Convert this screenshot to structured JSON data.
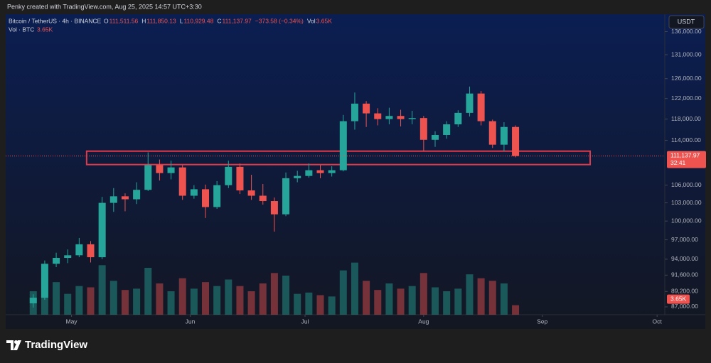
{
  "chart_data": {
    "type": "candlestick",
    "credit": "Penky created with TradingView.com, Aug 25, 2025 14:57 UTC+3:30",
    "symbol": "Bitcoin / TetherUS · 4h · BINANCE",
    "ohlc_legend": [
      {
        "label": "O",
        "value": "111,511.56"
      },
      {
        "label": "H",
        "value": "111,850.13"
      },
      {
        "label": "L",
        "value": "110,929.48"
      },
      {
        "label": "C",
        "value": "111,137.97"
      },
      {
        "label": "",
        "value": "−373.58 (−0.34%)"
      },
      {
        "label": "Vol",
        "value": "3.65K"
      }
    ],
    "volume_legend": {
      "label": "Vol · BTC",
      "value": "3.65K"
    },
    "currency": "USDT",
    "last_price": 111137.97,
    "last_price_label": "111,137.97",
    "countdown": "32:41",
    "last_volume_label": "3.65K",
    "brand": "TradingView",
    "log_scale": true,
    "up_color": "#26a69a",
    "down_color": "#ef5350",
    "ylim": [
      85900,
      139900
    ],
    "yticks": [
      {
        "value": 136000,
        "label": "136,000.00"
      },
      {
        "value": 131000,
        "label": "131,000.00"
      },
      {
        "value": 126000,
        "label": "126,000.00"
      },
      {
        "value": 122000,
        "label": "122,000.00"
      },
      {
        "value": 118000,
        "label": "118,000.00"
      },
      {
        "value": 114000,
        "label": "114,000.00"
      },
      {
        "value": 106000,
        "label": "106,000.00"
      },
      {
        "value": 103000,
        "label": "103,000.00"
      },
      {
        "value": 100000,
        "label": "100,000.00"
      },
      {
        "value": 97000,
        "label": "97,000.00"
      },
      {
        "value": 94000,
        "label": "94,000.00"
      },
      {
        "value": 91600,
        "label": "91,600.00"
      },
      {
        "value": 89200,
        "label": "89,200.00"
      },
      {
        "value": 87000,
        "label": "87,000.00"
      }
    ],
    "xlim": [
      -2.4,
      55
    ],
    "xticks": [
      {
        "value": 3.33,
        "label": "May"
      },
      {
        "value": 13.67,
        "label": "Jun"
      },
      {
        "value": 23.67,
        "label": "Jul"
      },
      {
        "value": 34,
        "label": "Aug"
      },
      {
        "value": 44.33,
        "label": "Sep"
      },
      {
        "value": 54.33,
        "label": "Oct"
      }
    ],
    "vlim": [
      0,
      30000
    ],
    "zone": {
      "x": [
        4.65,
        48.5
      ],
      "y": [
        109600,
        112020
      ],
      "color": "#e0394a"
    },
    "candles": [
      [
        87500,
        88800,
        86900,
        88300
      ],
      [
        88300,
        93800,
        88000,
        93300
      ],
      [
        93300,
        95000,
        92800,
        94200
      ],
      [
        94200,
        95500,
        93400,
        94600
      ],
      [
        94600,
        97300,
        94300,
        96300
      ],
      [
        96300,
        96800,
        93500,
        94300
      ],
      [
        94300,
        104000,
        94000,
        103000
      ],
      [
        103000,
        105500,
        101500,
        104100
      ],
      [
        104100,
        104600,
        101600,
        103600
      ],
      [
        103600,
        106500,
        102800,
        105200
      ],
      [
        105200,
        111800,
        105000,
        109500
      ],
      [
        109500,
        110500,
        106800,
        108100
      ],
      [
        108100,
        110300,
        107000,
        109100
      ],
      [
        109100,
        109500,
        103500,
        104200
      ],
      [
        104200,
        106000,
        103700,
        105300
      ],
      [
        105300,
        106100,
        100500,
        102300
      ],
      [
        102300,
        106700,
        102000,
        106000
      ],
      [
        106000,
        110300,
        105500,
        109200
      ],
      [
        109200,
        109800,
        104500,
        105100
      ],
      [
        105100,
        107800,
        103500,
        104200
      ],
      [
        104200,
        106200,
        102700,
        103300
      ],
      [
        103300,
        103900,
        98300,
        101100
      ],
      [
        101100,
        108200,
        100800,
        107200
      ],
      [
        107200,
        108500,
        106500,
        107600
      ],
      [
        107600,
        109800,
        107300,
        108600
      ],
      [
        108600,
        109500,
        107200,
        108100
      ],
      [
        108100,
        109300,
        107500,
        108600
      ],
      [
        108600,
        118800,
        108400,
        117600
      ],
      [
        117600,
        123200,
        116000,
        121000
      ],
      [
        121000,
        121500,
        116500,
        119100
      ],
      [
        119100,
        120100,
        116800,
        118000
      ],
      [
        118000,
        120200,
        117000,
        118600
      ],
      [
        118600,
        119800,
        116600,
        118000
      ],
      [
        118000,
        119600,
        117000,
        118200
      ],
      [
        118200,
        118600,
        112000,
        114100
      ],
      [
        114100,
        115700,
        112800,
        115000
      ],
      [
        115000,
        117600,
        114300,
        117000
      ],
      [
        117000,
        119700,
        116500,
        119200
      ],
      [
        119200,
        124400,
        118500,
        123000
      ],
      [
        123000,
        123500,
        116800,
        117600
      ],
      [
        117600,
        117900,
        112600,
        113200
      ],
      [
        113200,
        117400,
        112000,
        116500
      ],
      [
        116500,
        116800,
        110900,
        111137.97
      ]
    ],
    "volumes": [
      9000,
      14000,
      12500,
      8000,
      11000,
      10500,
      19000,
      13000,
      9500,
      10000,
      18000,
      12000,
      9000,
      14000,
      10000,
      12500,
      11000,
      13500,
      11000,
      9000,
      12000,
      16000,
      15000,
      8000,
      8500,
      7500,
      7000,
      17000,
      20000,
      13000,
      9500,
      12000,
      10000,
      11000,
      16000,
      10500,
      9000,
      10000,
      15500,
      14000,
      13000,
      12000,
      3650
    ]
  }
}
